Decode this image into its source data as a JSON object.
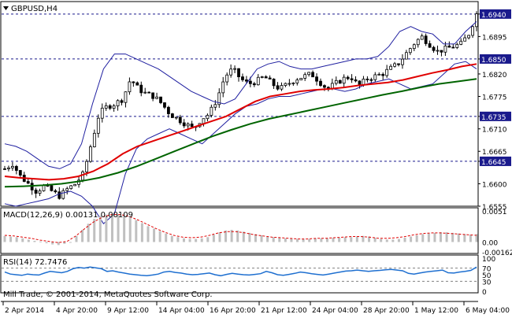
{
  "window": {
    "symbol_title": "GBPUSD,H4",
    "copyright": "Mill Trade, © 2001-2014, MetaQuotes Software Corp."
  },
  "colors": {
    "background": "#ffffff",
    "frame": "#000000",
    "candle": "#000000",
    "level_line": "#1a1a8c",
    "level_label_bg": "#1a1a8c",
    "bollinger": "#1f1fa0",
    "ma_fast": "#e00000",
    "ma_slow": "#006400",
    "macd_hist": "#c0c0c0",
    "macd_signal": "#e00000",
    "rsi_line": "#1e6fd0",
    "rsi_level": "#808080"
  },
  "chart_data": [
    {
      "type": "candlestick",
      "title": "GBPUSD,H4",
      "ylim": [
        1.6555,
        1.6965
      ],
      "y_tick_labels": [
        "1.6940",
        "1.6895",
        "1.6850",
        "1.6820",
        "1.6775",
        "1.6735",
        "1.6710",
        "1.6665",
        "1.6645",
        "1.6600",
        "1.6555"
      ],
      "horizontal_levels": [
        1.694,
        1.685,
        1.6735,
        1.6645
      ],
      "x_tick_labels": [
        "2 Apr 2014",
        "4 Apr 20:00",
        "9 Apr 12:00",
        "14 Apr 04:00",
        "16 Apr 20:00",
        "21 Apr 12:00",
        "24 Apr 04:00",
        "28 Apr 20:00",
        "1 May 12:00",
        "6 May 04:00"
      ],
      "close_path": [
        1.663,
        1.664,
        1.6615,
        1.66,
        1.6585,
        1.6595,
        1.6585,
        1.6575,
        1.659,
        1.66,
        1.662,
        1.668,
        1.674,
        1.6755,
        1.676,
        1.677,
        1.681,
        1.679,
        1.678,
        1.6775,
        1.676,
        1.674,
        1.673,
        1.672,
        1.671,
        1.673,
        1.674,
        1.677,
        1.6815,
        1.683,
        1.681,
        1.68,
        1.6805,
        1.6815,
        1.68,
        1.679,
        1.68,
        1.681,
        1.6815,
        1.682,
        1.6805,
        1.679,
        1.68,
        1.681,
        1.6815,
        1.6795,
        1.681,
        1.6815,
        1.682,
        1.683,
        1.684,
        1.686,
        1.688,
        1.6895,
        1.688,
        1.6865,
        1.687,
        1.6875,
        1.688,
        1.69,
        1.694
      ],
      "bollinger_upper": [
        1.668,
        1.6675,
        1.6665,
        1.665,
        1.6635,
        1.663,
        1.664,
        1.668,
        1.676,
        1.683,
        1.686,
        1.686,
        1.685,
        1.684,
        1.683,
        1.6815,
        1.68,
        1.6785,
        1.6775,
        1.6765,
        1.676,
        1.677,
        1.68,
        1.683,
        1.684,
        1.6845,
        1.6835,
        1.683,
        1.683,
        1.6835,
        1.684,
        1.6845,
        1.685,
        1.685,
        1.6855,
        1.6875,
        1.6905,
        1.6915,
        1.6905,
        1.69,
        1.688,
        1.688,
        1.6905,
        1.6925
      ],
      "bollinger_lower": [
        1.656,
        1.6555,
        1.656,
        1.6565,
        1.657,
        1.658,
        1.6585,
        1.6575,
        1.6555,
        1.652,
        1.654,
        1.662,
        1.667,
        1.669,
        1.67,
        1.671,
        1.67,
        1.669,
        1.668,
        1.67,
        1.672,
        1.674,
        1.6755,
        1.676,
        1.677,
        1.6775,
        1.6775,
        1.678,
        1.6785,
        1.679,
        1.679,
        1.6785,
        1.679,
        1.68,
        1.6805,
        1.681,
        1.68,
        1.679,
        1.6795,
        1.68,
        1.682,
        1.684,
        1.6845,
        1.683
      ],
      "ma_fast": [
        1.6615,
        1.6612,
        1.661,
        1.6608,
        1.661,
        1.6615,
        1.6625,
        1.664,
        1.666,
        1.6675,
        1.6685,
        1.6695,
        1.6705,
        1.6715,
        1.6725,
        1.6735,
        1.675,
        1.6765,
        1.6775,
        1.678,
        1.6785,
        1.6788,
        1.679,
        1.6793,
        1.6797,
        1.68,
        1.6803,
        1.6808,
        1.6815,
        1.6822,
        1.6828,
        1.6835,
        1.684
      ],
      "ma_slow": [
        1.6594,
        1.6595,
        1.6597,
        1.66,
        1.6605,
        1.6612,
        1.6622,
        1.6635,
        1.665,
        1.6665,
        1.668,
        1.6695,
        1.6708,
        1.672,
        1.673,
        1.6738,
        1.6746,
        1.6754,
        1.6762,
        1.677,
        1.6778,
        1.6785,
        1.6793,
        1.68,
        1.6805,
        1.681
      ]
    },
    {
      "type": "bar",
      "title": "MACD(12,26,9) 0.00131 0.00109",
      "ylim": [
        -0.00162,
        0.0051
      ],
      "y_tick_labels": [
        "0.0051",
        "0.00",
        "-0.00162"
      ],
      "histogram": [
        0.001,
        0.0009,
        0.0008,
        0.0006,
        0.0004,
        0.0002,
        0.0001,
        -0.0002,
        -0.0004,
        -0.0005,
        -0.0003,
        0.0,
        0.001,
        0.002,
        0.003,
        0.0038,
        0.0043,
        0.0045,
        0.0046,
        0.0045,
        0.0043,
        0.004,
        0.0036,
        0.0031,
        0.0026,
        0.0022,
        0.0018,
        0.0014,
        0.001,
        0.0008,
        0.0006,
        0.0005,
        0.0005,
        0.0006,
        0.0008,
        0.0012,
        0.0016,
        0.0019,
        0.002,
        0.0019,
        0.0017,
        0.0015,
        0.0013,
        0.0011,
        0.0009,
        0.0008,
        0.0007,
        0.0006,
        0.0006,
        0.0005,
        0.0005,
        0.0005,
        0.0006,
        0.0006,
        0.0006,
        0.0007,
        0.0007,
        0.0008,
        0.0008,
        0.0009,
        0.001,
        0.0009,
        0.0007,
        0.0005,
        0.0004,
        0.0004,
        0.0005,
        0.0007,
        0.0009,
        0.0011,
        0.0013,
        0.0014,
        0.0015,
        0.0016,
        0.0016,
        0.0015,
        0.0014,
        0.0013,
        0.0012,
        0.0013
      ],
      "signal": [
        0.0011,
        0.001,
        0.0008,
        0.0006,
        0.0003,
        0.0001,
        -0.0001,
        0.0001,
        0.001,
        0.0022,
        0.0033,
        0.0041,
        0.0045,
        0.0045,
        0.0042,
        0.0036,
        0.0029,
        0.0022,
        0.0016,
        0.0011,
        0.0008,
        0.0007,
        0.0008,
        0.0011,
        0.0015,
        0.0017,
        0.0017,
        0.0015,
        0.0012,
        0.001,
        0.0008,
        0.0007,
        0.0006,
        0.0005,
        0.0005,
        0.0006,
        0.0006,
        0.0007,
        0.0008,
        0.0009,
        0.0009,
        0.0008,
        0.0006,
        0.0006,
        0.0007,
        0.0009,
        0.0012,
        0.0014,
        0.0015,
        0.0015,
        0.0014,
        0.0013,
        0.0012,
        0.0011
      ]
    },
    {
      "type": "line",
      "title": "RSI(14) 72.7476",
      "ylim": [
        0,
        100
      ],
      "y_tick_labels": [
        "100",
        "70",
        "50",
        "30",
        "0"
      ],
      "levels": [
        70,
        30
      ],
      "values": [
        58,
        52,
        50,
        48,
        52,
        50,
        49,
        55,
        60,
        58,
        56,
        60,
        68,
        72,
        70,
        73,
        71,
        68,
        60,
        62,
        58,
        55,
        52,
        50,
        48,
        47,
        49,
        52,
        58,
        60,
        57,
        55,
        52,
        50,
        51,
        53,
        55,
        50,
        47,
        51,
        54,
        52,
        50,
        49,
        51,
        53,
        60,
        56,
        50,
        48,
        51,
        54,
        58,
        56,
        53,
        51,
        49,
        52,
        55,
        58,
        61,
        62,
        64,
        62,
        60,
        62,
        63,
        65,
        66,
        64,
        62,
        54,
        52,
        55,
        58,
        60,
        62,
        64,
        56,
        55,
        58,
        60,
        63,
        73
      ]
    }
  ]
}
